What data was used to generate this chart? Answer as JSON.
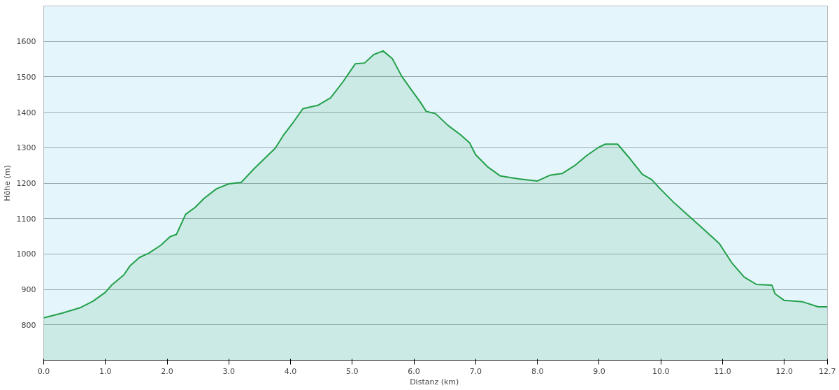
{
  "chart_data": {
    "type": "area",
    "xlabel": "Distanz  (km)",
    "ylabel": "Höhe (m)",
    "x": [
      0,
      0.3,
      0.6,
      0.8,
      1.0,
      1.1,
      1.3,
      1.4,
      1.55,
      1.7,
      1.9,
      2.05,
      2.15,
      2.3,
      2.45,
      2.6,
      2.8,
      3.0,
      3.2,
      3.4,
      3.6,
      3.75,
      3.9,
      4.05,
      4.2,
      4.45,
      4.65,
      4.85,
      5.05,
      5.2,
      5.35,
      5.5,
      5.65,
      5.8,
      5.95,
      6.1,
      6.2,
      6.35,
      6.55,
      6.75,
      6.9,
      7.0,
      7.2,
      7.4,
      7.7,
      8.0,
      8.2,
      8.4,
      8.6,
      8.8,
      9.0,
      9.1,
      9.3,
      9.5,
      9.7,
      9.85,
      10.0,
      10.2,
      10.45,
      10.7,
      10.95,
      11.15,
      11.35,
      11.55,
      11.8,
      11.85,
      12.0,
      12.3,
      12.55,
      12.7
    ],
    "series": [
      {
        "color": "#22a04a",
        "values": [
          820,
          833,
          849,
          867,
          892,
          912,
          941,
          967,
          990,
          1002,
          1025,
          1049,
          1055,
          1112,
          1131,
          1157,
          1184,
          1198,
          1202,
          1239,
          1273,
          1298,
          1339,
          1373,
          1410,
          1420,
          1441,
          1486,
          1537,
          1539,
          1563,
          1573,
          1551,
          1502,
          1465,
          1429,
          1402,
          1396,
          1363,
          1337,
          1314,
          1280,
          1245,
          1220,
          1212,
          1206,
          1222,
          1227,
          1249,
          1278,
          1302,
          1310,
          1310,
          1269,
          1225,
          1210,
          1182,
          1147,
          1108,
          1069,
          1029,
          975,
          935,
          914,
          912,
          888,
          869,
          865,
          851,
          851
        ]
      }
    ],
    "xlim": [
      0,
      12.7
    ],
    "ylim": [
      700,
      1700
    ],
    "xticks": [
      {
        "value": 0,
        "label": "0.0"
      },
      {
        "value": 1,
        "label": "1.0"
      },
      {
        "value": 2,
        "label": "2.0"
      },
      {
        "value": 3,
        "label": "3.0"
      },
      {
        "value": 4,
        "label": "4.0"
      },
      {
        "value": 5,
        "label": "5.0"
      },
      {
        "value": 6,
        "label": "6.0"
      },
      {
        "value": 7,
        "label": "7.0"
      },
      {
        "value": 8,
        "label": "8.0"
      },
      {
        "value": 9,
        "label": "9.0"
      },
      {
        "value": 10,
        "label": "10.0"
      },
      {
        "value": 11,
        "label": "11.0"
      },
      {
        "value": 12,
        "label": "12.0"
      },
      12.7
    ],
    "yticks": [
      800,
      900,
      1000,
      1100,
      1200,
      1300,
      1400,
      1500,
      1600
    ],
    "grid": "y"
  }
}
